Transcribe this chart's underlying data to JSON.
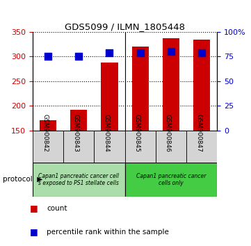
{
  "title": "GDS5099 / ILMN_1805448",
  "samples": [
    "GSM900842",
    "GSM900843",
    "GSM900844",
    "GSM900845",
    "GSM900846",
    "GSM900847"
  ],
  "counts": [
    170,
    192,
    288,
    320,
    337,
    335
  ],
  "percentile_ranks": [
    75,
    75,
    79,
    79,
    80,
    79
  ],
  "ylim_left": [
    150,
    350
  ],
  "ylim_right": [
    0,
    100
  ],
  "yticks_left": [
    150,
    200,
    250,
    300,
    350
  ],
  "yticks_right": [
    0,
    25,
    50,
    75,
    100
  ],
  "bar_color": "#cc0000",
  "dot_color": "#0000cc",
  "group1_color": "#aaddaa",
  "group2_color": "#44cc44",
  "group1_label": "Capan1 pancreatic cancer cell\ns exposed to PS1 stellate cells",
  "group2_label": "Capan1 pancreatic cancer\ncells only",
  "legend_count_color": "#cc0000",
  "legend_pct_color": "#0000cc",
  "tick_label_color_left": "#cc0000",
  "tick_label_color_right": "#0000cc",
  "bar_width": 0.55,
  "dot_size": 50,
  "plot_bg": "#ffffff",
  "sample_box_bg": "#d4d4d4"
}
